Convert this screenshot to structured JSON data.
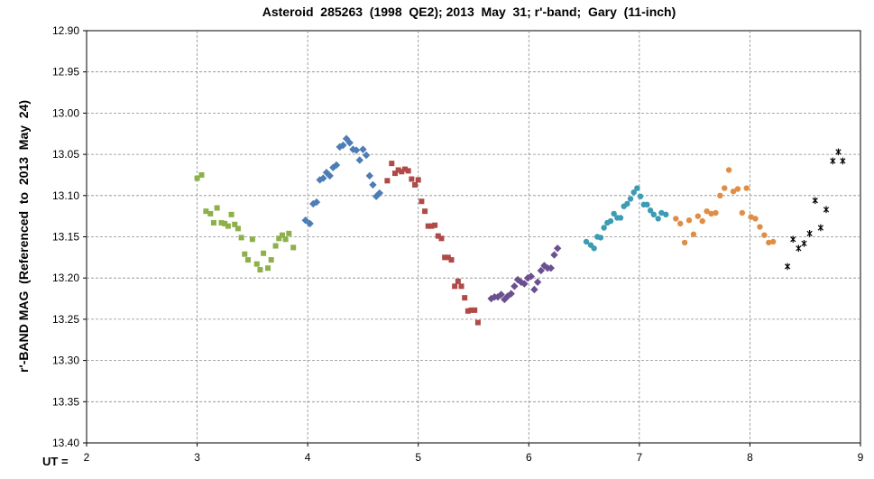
{
  "chart_data": {
    "type": "scatter",
    "title": "Asteroid  285263  (1998  QE2); 2013  May  31; r'-band;  Gary  (11-inch)",
    "xlabel": "UT =",
    "ylabel": "r'-BAND MAG  (Referenced  to  2013  May  24)",
    "xlim": [
      2,
      9
    ],
    "ylim": [
      12.9,
      13.4
    ],
    "y_inverted": true,
    "grid": "dashed",
    "legend": "none",
    "xticks": [
      "2",
      "3",
      "4",
      "5",
      "6",
      "7",
      "8",
      "9"
    ],
    "yticks": [
      "12.90",
      "12.95",
      "13.00",
      "13.05",
      "13.10",
      "13.15",
      "13.20",
      "13.25",
      "13.30",
      "13.35",
      "13.40"
    ],
    "series": [
      {
        "marker": "square",
        "color": "#8DB04A",
        "x": [
          3.0,
          3.04,
          3.08,
          3.12,
          3.15,
          3.18,
          3.22,
          3.25,
          3.28,
          3.31,
          3.34,
          3.37,
          3.4,
          3.43,
          3.46,
          3.5,
          3.54,
          3.57,
          3.6,
          3.64,
          3.67,
          3.71,
          3.74,
          3.77,
          3.8,
          3.83,
          3.87
        ],
        "y": [
          13.079,
          13.075,
          13.119,
          13.122,
          13.133,
          13.115,
          13.133,
          13.134,
          13.137,
          13.123,
          13.135,
          13.14,
          13.151,
          13.171,
          13.178,
          13.153,
          13.183,
          13.19,
          13.17,
          13.188,
          13.178,
          13.161,
          13.152,
          13.148,
          13.153,
          13.146,
          13.163
        ]
      },
      {
        "marker": "diamond",
        "color": "#4D7DB4",
        "x": [
          3.98,
          4.02,
          4.05,
          4.08,
          4.11,
          4.14,
          4.17,
          4.2,
          4.23,
          4.26,
          4.29,
          4.32,
          4.35,
          4.38,
          4.41,
          4.44,
          4.47,
          4.5,
          4.53,
          4.56,
          4.59,
          4.62,
          4.65
        ],
        "y": [
          13.13,
          13.134,
          13.11,
          13.108,
          13.081,
          13.079,
          13.072,
          13.076,
          13.066,
          13.063,
          13.041,
          13.039,
          13.031,
          13.036,
          13.044,
          13.045,
          13.057,
          13.044,
          13.051,
          13.076,
          13.087,
          13.101,
          13.097
        ]
      },
      {
        "marker": "square",
        "color": "#B04A48",
        "x": [
          4.72,
          4.76,
          4.79,
          4.82,
          4.85,
          4.88,
          4.91,
          4.94,
          4.97,
          5.0,
          5.03,
          5.06,
          5.09,
          5.12,
          5.15,
          5.18,
          5.21,
          5.24,
          5.27,
          5.3,
          5.33,
          5.36,
          5.39,
          5.42,
          5.45,
          5.48,
          5.51,
          5.54
        ],
        "y": [
          13.082,
          13.061,
          13.073,
          13.069,
          13.071,
          13.068,
          13.07,
          13.08,
          13.087,
          13.081,
          13.107,
          13.119,
          13.137,
          13.137,
          13.136,
          13.149,
          13.152,
          13.175,
          13.175,
          13.178,
          13.21,
          13.204,
          13.21,
          13.224,
          13.24,
          13.239,
          13.239,
          13.254
        ]
      },
      {
        "marker": "diamond",
        "color": "#6B5090",
        "x": [
          5.66,
          5.69,
          5.72,
          5.75,
          5.78,
          5.81,
          5.84,
          5.87,
          5.9,
          5.93,
          5.96,
          5.99,
          6.02,
          6.05,
          6.08,
          6.11,
          6.14,
          6.17,
          6.2,
          6.23,
          6.26
        ],
        "y": [
          13.225,
          13.223,
          13.223,
          13.22,
          13.226,
          13.222,
          13.219,
          13.21,
          13.202,
          13.205,
          13.207,
          13.2,
          13.198,
          13.214,
          13.205,
          13.191,
          13.185,
          13.188,
          13.188,
          13.172,
          13.164
        ]
      },
      {
        "marker": "circle",
        "color": "#3B9CB4",
        "x": [
          6.52,
          6.56,
          6.59,
          6.62,
          6.65,
          6.68,
          6.71,
          6.74,
          6.77,
          6.8,
          6.83,
          6.86,
          6.89,
          6.92,
          6.95,
          6.98,
          7.01,
          7.04,
          7.07,
          7.1,
          7.13,
          7.17,
          7.2,
          7.24
        ],
        "y": [
          13.156,
          13.16,
          13.164,
          13.15,
          13.151,
          13.139,
          13.133,
          13.131,
          13.122,
          13.127,
          13.127,
          13.113,
          13.11,
          13.104,
          13.096,
          13.091,
          13.101,
          13.111,
          13.111,
          13.118,
          13.123,
          13.128,
          13.121,
          13.123
        ]
      },
      {
        "marker": "circle",
        "color": "#E08E45",
        "x": [
          7.33,
          7.37,
          7.41,
          7.45,
          7.49,
          7.53,
          7.57,
          7.61,
          7.65,
          7.69,
          7.73,
          7.77,
          7.81,
          7.85,
          7.89,
          7.93,
          7.97,
          8.01,
          8.05,
          8.09,
          8.13,
          8.17,
          8.21
        ],
        "y": [
          13.128,
          13.134,
          13.157,
          13.13,
          13.147,
          13.125,
          13.131,
          13.119,
          13.122,
          13.121,
          13.1,
          13.091,
          13.069,
          13.095,
          13.092,
          13.121,
          13.091,
          13.126,
          13.128,
          13.138,
          13.148,
          13.157,
          13.156
        ]
      },
      {
        "marker": "star",
        "color": "#000000",
        "x": [
          8.34,
          8.39,
          8.44,
          8.49,
          8.54,
          8.59,
          8.64,
          8.69,
          8.75,
          8.8,
          8.84
        ],
        "y": [
          13.186,
          13.153,
          13.164,
          13.158,
          13.146,
          13.106,
          13.139,
          13.117,
          13.058,
          13.047,
          13.058
        ]
      }
    ]
  }
}
